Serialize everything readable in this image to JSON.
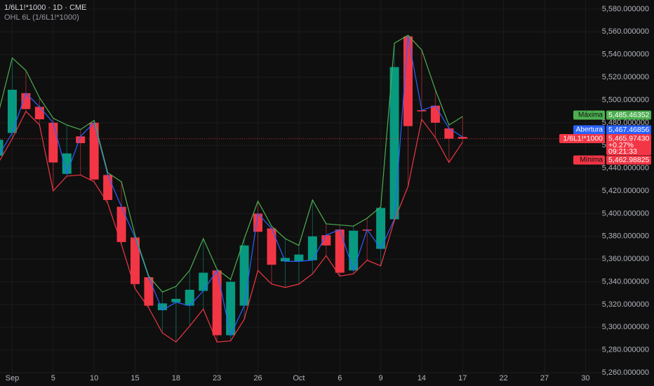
{
  "chart_data": {
    "type": "candlestick",
    "title": "1/6L1!*1000 · 1D · CME",
    "subtitle": "OHL 6L (1/6L1!*1000)",
    "categories": [
      null,
      "Sep",
      null,
      null,
      "5",
      null,
      null,
      "10",
      null,
      null,
      "15",
      null,
      null,
      "18",
      null,
      null,
      "23",
      null,
      null,
      "26",
      null,
      null,
      "Oct",
      null,
      null,
      "6",
      null,
      null,
      "9",
      null,
      null,
      "14",
      null,
      null,
      "17",
      null,
      null,
      "22",
      null,
      null,
      "27",
      null,
      null,
      "30"
    ],
    "series": [
      {
        "name": "Abertura",
        "color": "#2962ff",
        "values": [
          5451,
          5471,
          5506,
          5494,
          5480,
          5435,
          5468,
          5480,
          5434,
          5406,
          5379,
          5344,
          5315,
          5322,
          5319,
          5332,
          5350,
          5293,
          5319,
          5400,
          5387,
          5358,
          5358,
          5359,
          5381,
          5386,
          5350,
          5386,
          5369,
          5395,
          5556,
          5491,
          5495,
          5475,
          5467.46856,
          null,
          null,
          null,
          null,
          null,
          null,
          null,
          null,
          null
        ],
        "value_labels": [
          null,
          null,
          null,
          null,
          null,
          null,
          null,
          null,
          null,
          null,
          null,
          null,
          null,
          null,
          null,
          null,
          null,
          null,
          null,
          null,
          null,
          null,
          null,
          null,
          null,
          null,
          null,
          null,
          null,
          null,
          null,
          null,
          null,
          null,
          "5,467.46856",
          null,
          null,
          null,
          null,
          null,
          null,
          null,
          null,
          null
        ]
      },
      {
        "name": "Máxima",
        "color": "#4caf50",
        "values": [
          5489,
          5537,
          5526,
          5502,
          5484,
          5478,
          5474,
          5482,
          5436,
          5428,
          5381,
          5345,
          5331,
          5336,
          5350,
          5378,
          5351,
          5342,
          5378,
          5411,
          5389,
          5378,
          5372,
          5412,
          5391,
          5390,
          5389,
          5396,
          5406,
          5550,
          5557,
          5544,
          5509,
          5478,
          5485.46352,
          null,
          null,
          null,
          null,
          null,
          null,
          null,
          null,
          null
        ],
        "value_labels": [
          null,
          null,
          null,
          null,
          null,
          null,
          null,
          null,
          null,
          null,
          null,
          null,
          null,
          null,
          null,
          null,
          null,
          null,
          null,
          null,
          null,
          null,
          null,
          null,
          null,
          null,
          null,
          null,
          null,
          null,
          null,
          null,
          null,
          null,
          "5,485.46352",
          null,
          null,
          null,
          null,
          null,
          null,
          null,
          null,
          null
        ]
      },
      {
        "name": "Mínima",
        "color": "#f23645",
        "values": [
          5445,
          5466,
          5490,
          5478,
          5420,
          5433,
          5434,
          5428,
          5409,
          5373,
          5334,
          5317,
          5295,
          5287,
          5301,
          5316,
          5287,
          5288,
          5307,
          5350,
          5338,
          5335,
          5338,
          5347,
          5363,
          5345,
          5347,
          5359,
          5354,
          5394,
          5424,
          5483,
          5467,
          5445,
          5462.98825,
          null,
          null,
          null,
          null,
          null,
          null,
          null,
          null,
          null
        ],
        "value_labels": [
          null,
          null,
          null,
          null,
          null,
          null,
          null,
          null,
          null,
          null,
          null,
          null,
          null,
          null,
          null,
          null,
          null,
          null,
          null,
          null,
          null,
          null,
          null,
          null,
          null,
          null,
          null,
          null,
          null,
          null,
          null,
          null,
          null,
          null,
          "5,462.98825",
          null,
          null,
          null,
          null,
          null,
          null,
          null,
          null,
          null
        ]
      }
    ],
    "close": [
      5465,
      5509,
      5492,
      5483,
      5445,
      5453,
      5462,
      5430,
      5412,
      5375,
      5338,
      5319,
      5321,
      5325,
      5333,
      5348,
      5293,
      5340,
      5372,
      5384,
      5355,
      5361,
      5364,
      5380,
      5372,
      5348,
      5385,
      5385,
      5405,
      5529,
      5477,
      5490,
      5480,
      5466,
      5465.9743,
      null,
      null,
      null,
      null,
      null,
      null,
      null,
      null,
      null
    ],
    "last_price": {
      "name": "1/6L1!*1000",
      "label": "5,465.97430",
      "change": "+0.27%",
      "countdown": "09:21:33"
    },
    "up_color": "#089981",
    "down_color": "#f23645",
    "ylim": [
      5252,
      5588
    ],
    "yticks": [
      {
        "value": 5260,
        "label": "5,260.000000"
      },
      {
        "value": 5280,
        "label": "5,280.000000"
      },
      {
        "value": 5300,
        "label": "5,300.000000"
      },
      {
        "value": 5320,
        "label": "5,320.000000"
      },
      {
        "value": 5340,
        "label": "5,340.000000"
      },
      {
        "value": 5360,
        "label": "5,360.000000"
      },
      {
        "value": 5380,
        "label": "5,380.000000"
      },
      {
        "value": 5400,
        "label": "5,400.000000"
      },
      {
        "value": 5420,
        "label": "5,420.000000"
      },
      {
        "value": 5440,
        "label": "5,440.000000"
      },
      {
        "value": 5460,
        "label": "5,460.000000"
      },
      {
        "value": 5480,
        "label": "5,480.000000"
      },
      {
        "value": 5500,
        "label": "5,500.000000"
      },
      {
        "value": 5520,
        "label": "5,520.000000"
      },
      {
        "value": 5540,
        "label": "5,540.000000"
      },
      {
        "value": 5560,
        "label": "5,560.000000"
      },
      {
        "value": 5580,
        "label": "5,580.000000"
      }
    ],
    "grid": true
  }
}
